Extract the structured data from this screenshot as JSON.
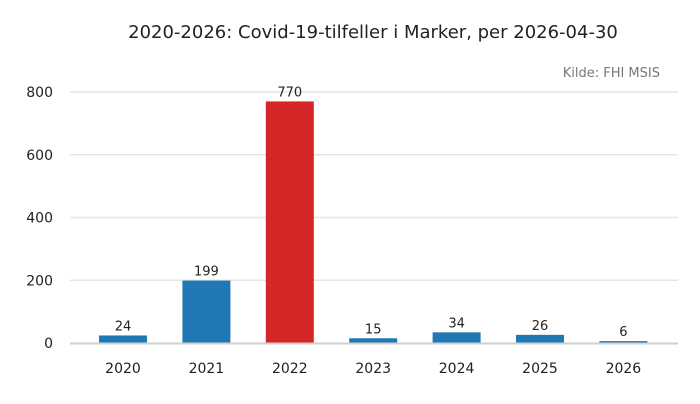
{
  "chart_data": {
    "type": "bar",
    "title": "2020-2026: Covid-19-tilfeller i Marker, per 2026-04-30",
    "source": "Kilde: FHI MSIS",
    "xlabel": "",
    "ylabel": "",
    "categories": [
      "2020",
      "2021",
      "2022",
      "2023",
      "2024",
      "2025",
      "2026"
    ],
    "values": [
      24,
      199,
      770,
      15,
      34,
      26,
      6
    ],
    "data_labels": [
      "24",
      "199",
      "770",
      "15",
      "34",
      "26",
      "6"
    ],
    "ylim": [
      0,
      900
    ],
    "yticks": [
      0,
      200,
      400,
      600,
      800
    ],
    "grid": true,
    "legend": "none",
    "colors": {
      "default_bar": "#1f77b4",
      "highlight_bar": "#d62728",
      "grid": "#e6e6e6",
      "axis": "#d0d0d0",
      "text": "#222222",
      "source_text": "#777777"
    },
    "highlight_index": 2
  }
}
